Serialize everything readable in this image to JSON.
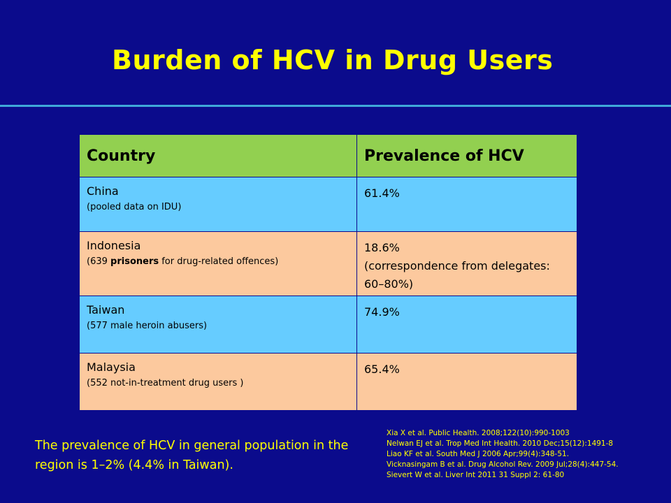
{
  "slide": {
    "title": "Burden of HCV in Drug Users"
  },
  "table": {
    "headers": [
      "Country",
      "Prevalence of HCV"
    ],
    "rows": [
      {
        "country": "China",
        "note_pre": "(pooled data on IDU)",
        "note_bold": "",
        "note_post": "",
        "prevalence": "61.4%",
        "prevalence_note": ""
      },
      {
        "country": "Indonesia",
        "note_pre": "(639 ",
        "note_bold": "prisoners",
        "note_post": " for drug-related offences)",
        "prevalence": "18.6%",
        "prevalence_note": "(correspondence from delegates: 60–80%)"
      },
      {
        "country": "Taiwan",
        "note_pre": "(577 male heroin abusers)",
        "note_bold": "",
        "note_post": "",
        "prevalence": "74.9%",
        "prevalence_note": ""
      },
      {
        "country": "Malaysia",
        "note_pre": "(552 not-in-treatment drug users )",
        "note_bold": "",
        "note_post": "",
        "prevalence": "65.4%",
        "prevalence_note": ""
      }
    ]
  },
  "footer": {
    "text": "The prevalence of HCV in general population in the region is 1–2% (4.4% in Taiwan)."
  },
  "references": [
    "Xia X et al. Public Health. 2008;122(10):990-1003",
    "Nelwan EJ et al. Trop Med Int Health. 2010 Dec;15(12):1491-8",
    "Liao KF et al. South Med J 2006 Apr;99(4):348-51.",
    "Vicknasingam B et al. Drug Alcohol Rev. 2009 Jul;28(4):447-54.",
    "Sievert W et al. Liver Int 2011 31 Suppl 2: 61-80"
  ],
  "colors": {
    "background": "#0b0b8c",
    "title": "#ffff00",
    "header_row": "#92d050",
    "row_blue": "#66ccff",
    "row_peach": "#fcc99e",
    "rule": "#3fa9d9"
  }
}
